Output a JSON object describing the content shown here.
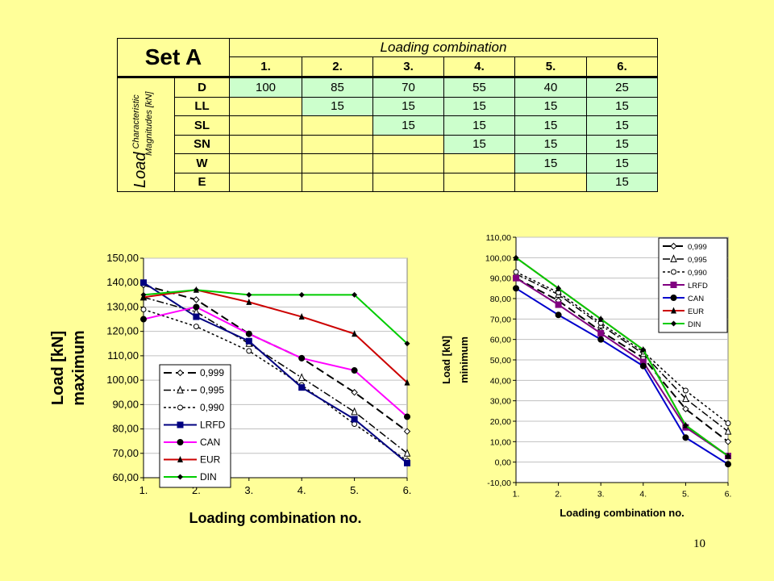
{
  "table": {
    "title": "Set A",
    "header": "Loading combination",
    "columns": [
      "1.",
      "2.",
      "3.",
      "4.",
      "5.",
      "6."
    ],
    "side_label_main": "Load",
    "side_label_sub1": "Characteristic",
    "side_label_sub2": "Magnitudes [kN]",
    "rows": [
      {
        "label": "D",
        "cells": [
          "100",
          "85",
          "70",
          "55",
          "40",
          "25"
        ]
      },
      {
        "label": "LL",
        "cells": [
          "",
          "15",
          "15",
          "15",
          "15",
          "15"
        ]
      },
      {
        "label": "SL",
        "cells": [
          "",
          "",
          "15",
          "15",
          "15",
          "15"
        ]
      },
      {
        "label": "SN",
        "cells": [
          "",
          "",
          "",
          "15",
          "15",
          "15"
        ]
      },
      {
        "label": "W",
        "cells": [
          "",
          "",
          "",
          "",
          "15",
          "15"
        ]
      },
      {
        "label": "E",
        "cells": [
          "",
          "",
          "",
          "",
          "",
          "15"
        ]
      }
    ]
  },
  "page_number": "10",
  "chart_data": [
    {
      "type": "line",
      "ylabel": "Load [kN]",
      "ylabel2": "maximum",
      "xlabel": "Loading combination no.",
      "categories": [
        "1.",
        "2.",
        "3.",
        "4.",
        "5.",
        "6."
      ],
      "ylim": [
        60,
        150
      ],
      "yticks": [
        "60,00",
        "70,00",
        "80,00",
        "90,00",
        "100,00",
        "110,00",
        "120,00",
        "130,00",
        "140,00",
        "150,00"
      ],
      "legend": "bottom-left inside",
      "series": [
        {
          "name": "0,999",
          "color": "#000000",
          "dash": "10,5",
          "marker": "diamond-open",
          "width": 2,
          "values": [
            139,
            133,
            119,
            109,
            95,
            79
          ]
        },
        {
          "name": "0,995",
          "color": "#000000",
          "dash": "9,3,2,3",
          "marker": "triangle-open",
          "width": 1.5,
          "values": [
            134,
            128,
            115,
            101,
            87,
            70
          ]
        },
        {
          "name": "0,990",
          "color": "#000000",
          "dash": "3,3",
          "marker": "circle-open",
          "width": 1.5,
          "values": [
            129,
            122,
            112,
            98,
            82,
            67
          ]
        },
        {
          "name": "LRFD",
          "color": "#000080",
          "dash": "",
          "marker": "square",
          "width": 2,
          "values": [
            140,
            126,
            116,
            97,
            84,
            66
          ]
        },
        {
          "name": "CAN",
          "color": "#ff00ff",
          "dash": "",
          "marker": "circle",
          "width": 2,
          "values": [
            125,
            130,
            119,
            109,
            104,
            85
          ]
        },
        {
          "name": "EUR",
          "color": "#cc0000",
          "dash": "",
          "marker": "triangle",
          "width": 2,
          "values": [
            134,
            137,
            132,
            126,
            119,
            99
          ]
        },
        {
          "name": "DIN",
          "color": "#00cc00",
          "dash": "",
          "marker": "diamond",
          "width": 2,
          "values": [
            135,
            137,
            135,
            135,
            135,
            115
          ]
        }
      ]
    },
    {
      "type": "line",
      "ylabel": "Load [kN]",
      "ylabel2": "minimum",
      "xlabel": "Loading combination no.",
      "categories": [
        "1.",
        "2.",
        "3.",
        "4.",
        "5.",
        "6."
      ],
      "ylim": [
        -10,
        110
      ],
      "yticks": [
        "-10,00",
        "0,00",
        "10,00",
        "20,00",
        "30,00",
        "40,00",
        "50,00",
        "60,00",
        "70,00",
        "80,00",
        "90,00",
        "100,00",
        "110,00"
      ],
      "legend": "top-right inside",
      "series": [
        {
          "name": "0,999",
          "color": "#000000",
          "dash": "10,5",
          "marker": "diamond-open",
          "width": 2,
          "values": [
            90,
            79,
            64,
            51,
            26,
            10
          ]
        },
        {
          "name": "0,995",
          "color": "#000000",
          "dash": "9,3,2,3",
          "marker": "triangle-open",
          "width": 1.5,
          "values": [
            92,
            82,
            67,
            53,
            31,
            15
          ]
        },
        {
          "name": "0,990",
          "color": "#000000",
          "dash": "3,3",
          "marker": "circle-open",
          "width": 1.5,
          "values": [
            93,
            83,
            68,
            54,
            35,
            19
          ]
        },
        {
          "name": "LRFD",
          "color": "#800080",
          "dash": "",
          "marker": "square",
          "width": 2,
          "values": [
            90,
            77,
            63,
            49,
            17,
            3
          ]
        },
        {
          "name": "CAN",
          "color": "#0000cc",
          "dash": "",
          "marker": "circle",
          "width": 2,
          "values": [
            85,
            72,
            60,
            47,
            12,
            -1
          ]
        },
        {
          "name": "EUR",
          "color": "#cc0000",
          "dash": "",
          "marker": "triangle",
          "width": 2,
          "values": [
            100,
            85,
            70,
            55,
            18,
            3
          ]
        },
        {
          "name": "DIN",
          "color": "#00cc00",
          "dash": "",
          "marker": "diamond",
          "width": 2,
          "values": [
            100,
            85,
            70,
            55,
            18,
            3
          ]
        }
      ]
    }
  ]
}
